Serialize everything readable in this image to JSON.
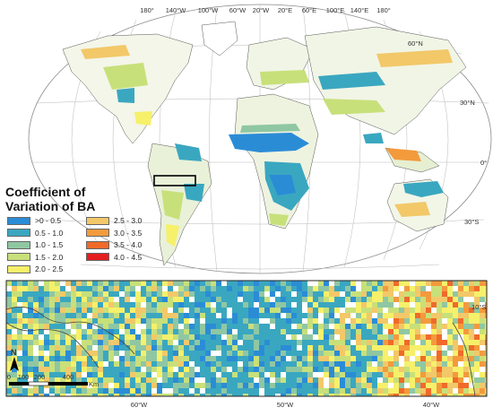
{
  "legend": {
    "title_line1": "Coefficient of",
    "title_line2": "Variation of BA",
    "classes": [
      {
        "label": ">0 - 0.5",
        "color": "#2b8cd6"
      },
      {
        "label": "0.5 - 1.0",
        "color": "#3aa7c0"
      },
      {
        "label": "1.0 - 1.5",
        "color": "#8fc7a3"
      },
      {
        "label": "1.5 - 2.0",
        "color": "#c8e07a"
      },
      {
        "label": "2.0 - 2.5",
        "color": "#f6f06a"
      },
      {
        "label": "2.5 - 3.0",
        "color": "#f2c869"
      },
      {
        "label": "3.0 - 3.5",
        "color": "#f39a3c"
      },
      {
        "label": "3.5 - 4.0",
        "color": "#f06a2a"
      },
      {
        "label": "4.0 - 4.5",
        "color": "#e51e1e"
      }
    ]
  },
  "world_map": {
    "top_longitude_labels": [
      "180°",
      "140°W",
      "100°W",
      "60°W",
      "20°W",
      "20°E",
      "60°E",
      "100°E",
      "140°E",
      "180°"
    ],
    "latitude_labels": [
      "60°N",
      "30°N",
      "0°",
      "30°S"
    ]
  },
  "inset": {
    "longitude_labels": [
      "60°W",
      "50°W",
      "40°W"
    ],
    "latitude_label": "10°S",
    "north_label": "N",
    "scale_labels": [
      "0",
      "100",
      "200",
      "400"
    ],
    "scale_unit": "Km"
  }
}
